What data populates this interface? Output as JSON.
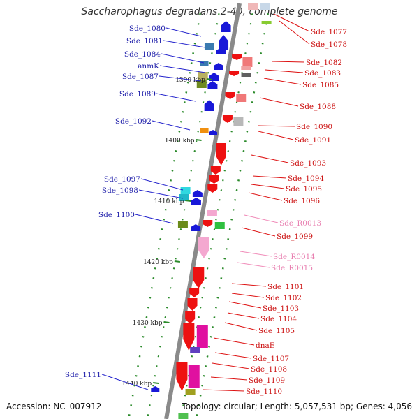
{
  "title": "Saccharophagus degradans 2-40, complete genome",
  "accession": "Accession: NC_007912",
  "summary": "Topology: circular; Length: 5,057,531 bp; Genes: 4,056",
  "colors": {
    "left_label": "#1a1aa8",
    "right_label": "#cc1111",
    "rna_label": "#e87fb0",
    "backbone": "#888888",
    "tick": "#2a8a2a",
    "leader_left": "#2222cc",
    "leader_right": "#dd1111",
    "leader_rna": "#f08ab8"
  },
  "axis_ticks": [
    "1390 kbp",
    "1400 kbp",
    "1410 kbp",
    "1420 kbp",
    "1430 kbp",
    "1440 kbp"
  ],
  "left_genes": [
    "Sde_1080",
    "Sde_1081",
    "Sde_1084",
    "anmK",
    "Sde_1087",
    "Sde_1089",
    "Sde_1092",
    "Sde_1097",
    "Sde_1098",
    "Sde_1100",
    "Sde_1111"
  ],
  "right_genes": [
    "Sde_1077",
    "Sde_1078",
    "Sde_1082",
    "Sde_1083",
    "Sde_1085",
    "Sde_1088",
    "Sde_1090",
    "Sde_1091",
    "Sde_1093",
    "Sde_1094",
    "Sde_1095",
    "Sde_1096",
    "Sde_R0013",
    "Sde_1099",
    "Sde_R0014",
    "Sde_R0015",
    "Sde_1101",
    "Sde_1102",
    "Sde_1103",
    "Sde_1104",
    "Sde_1105",
    "dnaE",
    "Sde_1107",
    "Sde_1108",
    "Sde_1109",
    "Sde_1110"
  ],
  "rna_genes": [
    "Sde_R0013",
    "Sde_R0014",
    "Sde_R0015"
  ]
}
